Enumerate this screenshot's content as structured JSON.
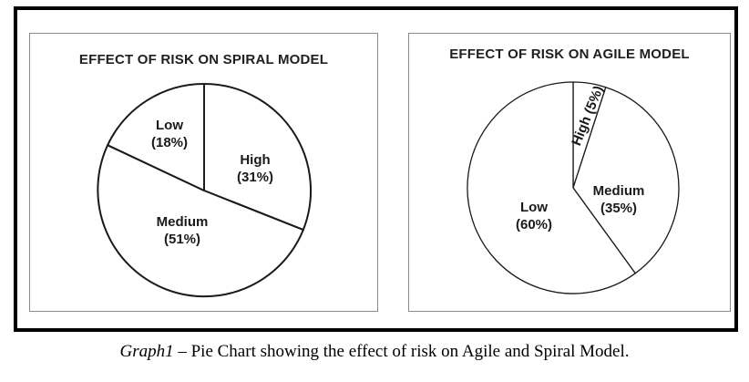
{
  "caption": {
    "prefix": "Graph1",
    "rest": " – Pie Chart showing the effect of risk on Agile and Spiral Model."
  },
  "charts": [
    {
      "title": "EFFECT OF RISK ON SPIRAL MODEL",
      "slices": [
        {
          "name": "High",
          "pct_label": "(31%)",
          "value": 31
        },
        {
          "name": "Medium",
          "pct_label": "(51%)",
          "value": 51
        },
        {
          "name": "Low",
          "pct_label": "(18%)",
          "value": 18
        }
      ]
    },
    {
      "title": "EFFECT OF RISK ON AGILE MODEL",
      "rotated_label": "High (5%)",
      "slices": [
        {
          "name": "High",
          "pct_label": "(5%)",
          "value": 5
        },
        {
          "name": "Medium",
          "pct_label": "(35%)",
          "value": 35
        },
        {
          "name": "Low",
          "pct_label": "(60%)",
          "value": 60
        }
      ]
    }
  ],
  "chart_data": [
    {
      "type": "pie",
      "title": "EFFECT OF RISK ON SPIRAL MODEL",
      "labels": [
        "High",
        "Medium",
        "Low"
      ],
      "values": [
        31,
        51,
        18
      ],
      "unit": "%",
      "start_angle_deg": 0,
      "direction": "clockwise",
      "fill": "#ffffff",
      "outline": "#1a1a1a",
      "legend_position": "none"
    },
    {
      "type": "pie",
      "title": "EFFECT OF RISK ON AGILE MODEL",
      "labels": [
        "High",
        "Medium",
        "Low"
      ],
      "values": [
        5,
        35,
        60
      ],
      "unit": "%",
      "start_angle_deg": 0,
      "direction": "clockwise",
      "fill": "#ffffff",
      "outline": "#1a1a1a",
      "legend_position": "none"
    }
  ],
  "colors": {
    "line": "#1a1a1a",
    "frame": "#000000",
    "panel_border": "#8a8a8a",
    "background": "#ffffff"
  }
}
